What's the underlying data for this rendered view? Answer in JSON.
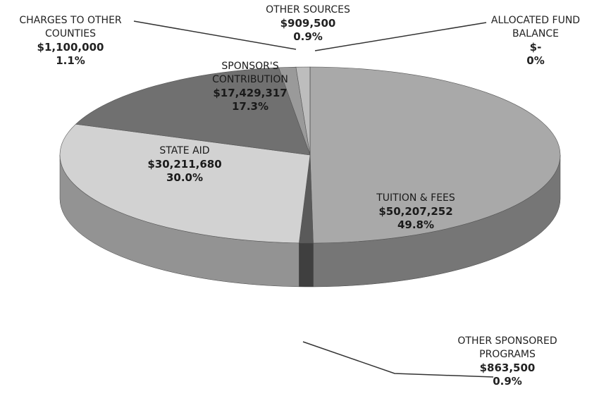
{
  "chart_data": {
    "type": "pie",
    "categories": [
      "TUITION & FEES",
      "OTHER SPONSORED PROGRAMS",
      "STATE AID",
      "SPONSOR'S CONTRIBUTION",
      "CHARGES TO OTHER COUNTIES",
      "OTHER SOURCES",
      "ALLOCATED FUND BALANCE"
    ],
    "values": [
      49.8,
      0.9,
      30.0,
      17.3,
      1.1,
      0.9,
      0
    ],
    "value_labels": [
      "49.8%",
      "0.9%",
      "30.0%",
      "17.3%",
      "1.1%",
      "0.9%",
      "0%"
    ],
    "amounts": [
      50207252,
      863500,
      30211680,
      17429317,
      1100000,
      909500,
      0
    ],
    "amount_labels": [
      "$50,207,252",
      "$863,500",
      "$30,211,680",
      "$17,429,317",
      "$1,100,000",
      "$909,500",
      "$-"
    ],
    "colors": [
      "#a9a9a9",
      "#5a5a5a",
      "#d2d2d2",
      "#707070",
      "#9a9a9a",
      "#bdbdbd",
      "#cfcfcf"
    ]
  }
}
